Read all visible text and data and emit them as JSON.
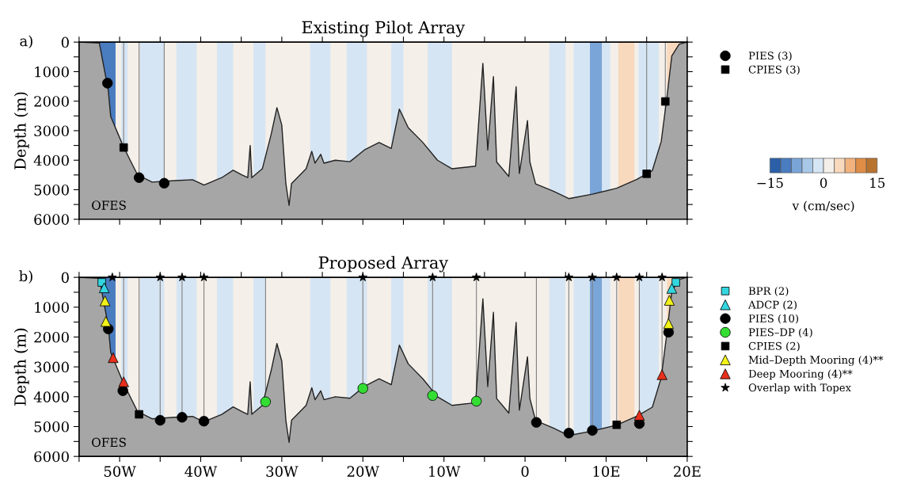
{
  "chart_data": [
    {
      "type": "line",
      "title": "Existing Pilot Array",
      "ylabel": "Depth (m)",
      "annotations": [
        "a)",
        "OFES",
        "−15",
        "0",
        "15",
        "v (cm/sec)"
      ],
      "xlim": [
        -55,
        20
      ],
      "xticks": [
        {
          "value": -55,
          "label": null
        },
        {
          "value": -50,
          "label": null
        },
        {
          "value": -45,
          "label": null
        },
        {
          "value": -40,
          "label": null
        },
        {
          "value": -35,
          "label": null
        },
        {
          "value": -30,
          "label": null
        },
        {
          "value": -25,
          "label": null
        },
        {
          "value": -20,
          "label": null
        },
        {
          "value": -15,
          "label": null
        },
        {
          "value": -10,
          "label": null
        },
        {
          "value": -5,
          "label": null
        },
        {
          "value": 0,
          "label": null
        },
        {
          "value": 5,
          "label": null
        },
        {
          "value": 10,
          "label": null
        },
        {
          "value": 15,
          "label": null
        },
        {
          "value": 20,
          "label": null
        }
      ],
      "ylim": [
        6000,
        0
      ],
      "yticks": [
        0,
        {
          "value": 500,
          "label": null
        },
        1000,
        {
          "value": 1500,
          "label": null
        },
        2000,
        {
          "value": 2500,
          "label": null
        },
        3000,
        {
          "value": 3500,
          "label": null
        },
        4000,
        {
          "value": 4500,
          "label": null
        },
        5000,
        {
          "value": 5500,
          "label": null
        },
        6000
      ],
      "tick_labels": "y",
      "legend": "right",
      "bands": [
        {
          "axis": "x",
          "from": -52.5,
          "to": -50.5,
          "color": "#4a7cc0"
        },
        {
          "axis": "x",
          "from": -49.8,
          "to": -49.0,
          "color": "#d6e5f3"
        },
        {
          "axis": "x",
          "from": -47.5,
          "to": -44.5,
          "color": "#d6e5f3"
        },
        {
          "axis": "x",
          "from": -43.0,
          "to": -40.5,
          "color": "#d6e5f3"
        },
        {
          "axis": "x",
          "from": -38.0,
          "to": -36.0,
          "color": "#d6e5f3"
        },
        {
          "axis": "x",
          "from": -33.5,
          "to": -32.0,
          "color": "#d6e5f3"
        },
        {
          "axis": "x",
          "from": -26.5,
          "to": -24.0,
          "color": "#d6e5f3"
        },
        {
          "axis": "x",
          "from": -22.0,
          "to": -19.5,
          "color": "#d6e5f3"
        },
        {
          "axis": "x",
          "from": -16.5,
          "to": -15.0,
          "color": "#d6e5f3"
        },
        {
          "axis": "x",
          "from": -12.0,
          "to": -9.0,
          "color": "#d6e5f3"
        },
        {
          "axis": "x",
          "from": 3.0,
          "to": 5.0,
          "color": "#d6e5f3"
        },
        {
          "axis": "x",
          "from": 6.0,
          "to": 8.0,
          "color": "#d6e5f3"
        },
        {
          "axis": "x",
          "from": 8.0,
          "to": 9.5,
          "color": "#7aa5d8"
        },
        {
          "axis": "x",
          "from": 9.5,
          "to": 10.5,
          "color": "#d6e5f3"
        },
        {
          "axis": "x",
          "from": 11.5,
          "to": 13.5,
          "color": "#f8d9bd"
        },
        {
          "axis": "x",
          "from": 14.0,
          "to": 16.5,
          "color": "#d6e5f3"
        },
        {
          "axis": "x",
          "from": 17.5,
          "to": 19.0,
          "color": "#f8d9bd"
        }
      ],
      "ref_lines": [
        {
          "axis": "x",
          "value": -49.5,
          "color": "#808080"
        },
        {
          "axis": "x",
          "value": -47.6,
          "color": "#808080"
        },
        {
          "axis": "x",
          "value": -44.5,
          "color": "#808080"
        },
        {
          "axis": "x",
          "value": 15.0,
          "color": "#808080"
        },
        {
          "axis": "x",
          "value": 17.3,
          "color": "#808080"
        }
      ],
      "series": [
        {
          "color": "#222222",
          "x": [
            -55,
            -52.5,
            -51.4,
            -51.1,
            -50.5,
            -49.6,
            -48.7,
            -47.8,
            -46.0,
            -43.2,
            -41.0,
            -39.6,
            -37.4,
            -36.0,
            -34.9,
            -34.2,
            -33.9,
            -33.7,
            -32.4,
            -31.3,
            -30.6,
            -30.0,
            -29.5,
            -29.1,
            -28.8,
            -27.0,
            -26.3,
            -25.9,
            -25.2,
            -24.8,
            -23.4,
            -21.6,
            -19.8,
            -18.0,
            -16.5,
            -15.5,
            -14.9,
            -14.4,
            -12.6,
            -10.8,
            -9.0,
            -6.1,
            -5.2,
            -4.6,
            -3.9,
            -3.5,
            -2.0,
            -1.1,
            -0.7,
            0.3,
            0.6,
            1.3,
            3.5,
            5.4,
            8.3,
            11.3,
            13.8,
            15.7,
            16.8,
            17.5,
            18.1,
            19.0,
            20
          ],
          "values": [
            0,
            30,
            1630,
            2520,
            2910,
            3500,
            4000,
            4490,
            4740,
            4690,
            4660,
            4840,
            4590,
            4340,
            4500,
            4590,
            3500,
            4590,
            4290,
            3110,
            2220,
            2810,
            4790,
            5530,
            4790,
            4290,
            3700,
            4100,
            3800,
            4100,
            4000,
            4050,
            3650,
            3400,
            3600,
            2270,
            2610,
            2900,
            3400,
            4000,
            4290,
            4200,
            720,
            3660,
            1170,
            4060,
            4550,
            1510,
            4450,
            2660,
            4060,
            4800,
            5050,
            5300,
            5150,
            4950,
            4650,
            4350,
            3360,
            1860,
            470,
            70,
            0
          ],
          "lower": [
            0,
            30,
            1630,
            2520,
            2910,
            3500,
            4000,
            4490,
            4740,
            4690,
            4660,
            4840,
            4590,
            4340,
            4500,
            4590,
            3500,
            4590,
            4290,
            3110,
            2220,
            2810,
            4790,
            5530,
            4790,
            4290,
            3700,
            4100,
            3800,
            4100,
            4000,
            4050,
            3650,
            3400,
            3600,
            2270,
            2610,
            2900,
            3400,
            4000,
            4290,
            4200,
            720,
            3660,
            1170,
            4060,
            4550,
            1510,
            4450,
            2660,
            4060,
            4800,
            5050,
            5300,
            5150,
            4950,
            4650,
            4350,
            3360,
            1860,
            470,
            70,
            0
          ],
          "upper": [
            6000,
            6000,
            6000,
            6000,
            6000,
            6000,
            6000,
            6000,
            6000,
            6000,
            6000,
            6000,
            6000,
            6000,
            6000,
            6000,
            6000,
            6000,
            6000,
            6000,
            6000,
            6000,
            6000,
            6000,
            6000,
            6000,
            6000,
            6000,
            6000,
            6000,
            6000,
            6000,
            6000,
            6000,
            6000,
            6000,
            6000,
            6000,
            6000,
            6000,
            6000,
            6000,
            6000,
            6000,
            6000,
            6000,
            6000,
            6000,
            6000,
            6000,
            6000,
            6000,
            6000,
            6000,
            6000,
            6000,
            6000,
            6000,
            6000,
            6000,
            6000,
            6000,
            6000
          ]
        },
        {
          "type": "scatter",
          "name": "PIES (3)",
          "color": "#000000",
          "marker": "circle",
          "x": [
            -51.5,
            -47.6,
            -44.5
          ],
          "values": [
            1390,
            4590,
            4780
          ]
        },
        {
          "type": "scatter",
          "name": "CPIES (3)",
          "color": "#000000",
          "marker": "square",
          "x": [
            -49.5,
            15.0,
            17.3
          ],
          "values": [
            3570,
            4460,
            2010
          ]
        }
      ]
    },
    {
      "type": "line",
      "title": "Proposed Array",
      "ylabel": "Depth (m)",
      "annotations": [
        "b)",
        "OFES"
      ],
      "xlim": [
        -55,
        20
      ],
      "xticks": [
        {
          "value": -55,
          "label": null
        },
        {
          "value": -50,
          "label": "50W"
        },
        {
          "value": -45,
          "label": null
        },
        {
          "value": -40,
          "label": "40W"
        },
        {
          "value": -35,
          "label": null
        },
        {
          "value": -30,
          "label": "30W"
        },
        {
          "value": -25,
          "label": null
        },
        {
          "value": -20,
          "label": "20W"
        },
        {
          "value": -15,
          "label": null
        },
        {
          "value": -10,
          "label": "10W"
        },
        {
          "value": -5,
          "label": null
        },
        {
          "value": 0,
          "label": "0"
        },
        {
          "value": 5,
          "label": null
        },
        {
          "value": 10,
          "label": "10E"
        },
        {
          "value": 15,
          "label": null
        },
        {
          "value": 20,
          "label": "20E"
        }
      ],
      "ylim": [
        6000,
        0
      ],
      "yticks": [
        0,
        {
          "value": 500,
          "label": null
        },
        1000,
        {
          "value": 1500,
          "label": null
        },
        2000,
        {
          "value": 2500,
          "label": null
        },
        3000,
        {
          "value": 3500,
          "label": null
        },
        4000,
        {
          "value": 4500,
          "label": null
        },
        5000,
        {
          "value": 5500,
          "label": null
        },
        6000
      ],
      "legend": "right",
      "bands": [
        {
          "axis": "x",
          "from": -52.5,
          "to": -50.5,
          "color": "#4a7cc0"
        },
        {
          "axis": "x",
          "from": -49.8,
          "to": -49.0,
          "color": "#d6e5f3"
        },
        {
          "axis": "x",
          "from": -47.5,
          "to": -44.5,
          "color": "#d6e5f3"
        },
        {
          "axis": "x",
          "from": -43.0,
          "to": -40.5,
          "color": "#d6e5f3"
        },
        {
          "axis": "x",
          "from": -38.0,
          "to": -36.0,
          "color": "#d6e5f3"
        },
        {
          "axis": "x",
          "from": -33.5,
          "to": -32.0,
          "color": "#d6e5f3"
        },
        {
          "axis": "x",
          "from": -26.5,
          "to": -24.0,
          "color": "#d6e5f3"
        },
        {
          "axis": "x",
          "from": -22.0,
          "to": -19.5,
          "color": "#d6e5f3"
        },
        {
          "axis": "x",
          "from": -16.5,
          "to": -15.0,
          "color": "#d6e5f3"
        },
        {
          "axis": "x",
          "from": -12.0,
          "to": -9.0,
          "color": "#d6e5f3"
        },
        {
          "axis": "x",
          "from": 3.0,
          "to": 5.0,
          "color": "#d6e5f3"
        },
        {
          "axis": "x",
          "from": 6.0,
          "to": 8.0,
          "color": "#d6e5f3"
        },
        {
          "axis": "x",
          "from": 8.0,
          "to": 9.5,
          "color": "#7aa5d8"
        },
        {
          "axis": "x",
          "from": 9.5,
          "to": 10.5,
          "color": "#d6e5f3"
        },
        {
          "axis": "x",
          "from": 11.5,
          "to": 13.5,
          "color": "#f8d9bd"
        },
        {
          "axis": "x",
          "from": 14.0,
          "to": 16.5,
          "color": "#d6e5f3"
        },
        {
          "axis": "x",
          "from": 17.5,
          "to": 19.0,
          "color": "#f8d9bd"
        }
      ],
      "ref_lines": [
        {
          "axis": "x",
          "value": -49.5,
          "color": "#808080"
        },
        {
          "axis": "x",
          "value": -47.6,
          "color": "#808080"
        },
        {
          "axis": "x",
          "value": -45.0,
          "color": "#808080"
        },
        {
          "axis": "x",
          "value": -42.3,
          "color": "#808080"
        },
        {
          "axis": "x",
          "value": -39.6,
          "color": "#808080"
        },
        {
          "axis": "x",
          "value": -32.0,
          "color": "#808080"
        },
        {
          "axis": "x",
          "value": -20.0,
          "color": "#808080"
        },
        {
          "axis": "x",
          "value": -11.4,
          "color": "#808080"
        },
        {
          "axis": "x",
          "value": -6.0,
          "color": "#808080"
        },
        {
          "axis": "x",
          "value": 1.4,
          "color": "#808080"
        },
        {
          "axis": "x",
          "value": 5.4,
          "color": "#808080"
        },
        {
          "axis": "x",
          "value": 8.3,
          "color": "#808080"
        },
        {
          "axis": "x",
          "value": 11.3,
          "color": "#808080"
        },
        {
          "axis": "x",
          "value": 14.1,
          "color": "#808080"
        },
        {
          "axis": "x",
          "value": 16.9,
          "color": "#808080"
        }
      ],
      "series": [
        {
          "color": "#222222",
          "x": [
            -55,
            -52.5,
            -51.4,
            -51.1,
            -50.5,
            -49.6,
            -48.7,
            -47.8,
            -46.0,
            -43.2,
            -41.0,
            -39.6,
            -37.4,
            -36.0,
            -34.9,
            -34.2,
            -33.9,
            -33.7,
            -32.4,
            -31.3,
            -30.6,
            -30.0,
            -29.5,
            -29.1,
            -28.8,
            -27.0,
            -26.3,
            -25.9,
            -25.2,
            -24.8,
            -23.4,
            -21.6,
            -19.8,
            -18.0,
            -16.5,
            -15.5,
            -14.9,
            -14.4,
            -12.6,
            -10.8,
            -9.0,
            -6.1,
            -5.2,
            -4.6,
            -3.9,
            -3.5,
            -2.0,
            -1.1,
            -0.7,
            0.3,
            0.6,
            1.3,
            3.5,
            5.4,
            8.3,
            11.3,
            13.8,
            15.7,
            16.8,
            17.5,
            18.1,
            19.0,
            20
          ],
          "values": [
            0,
            30,
            1630,
            2520,
            2910,
            3500,
            4000,
            4490,
            4740,
            4690,
            4660,
            4840,
            4590,
            4340,
            4500,
            4590,
            3500,
            4590,
            4290,
            3110,
            2220,
            2810,
            4790,
            5530,
            4790,
            4290,
            3700,
            4100,
            3800,
            4100,
            4000,
            4050,
            3650,
            3400,
            3600,
            2270,
            2610,
            2900,
            3400,
            4000,
            4290,
            4200,
            720,
            3660,
            1170,
            4060,
            4550,
            1510,
            4450,
            2660,
            4060,
            4800,
            5050,
            5300,
            5150,
            4950,
            4650,
            4350,
            3360,
            1860,
            470,
            70,
            0
          ],
          "lower": [
            0,
            30,
            1630,
            2520,
            2910,
            3500,
            4000,
            4490,
            4740,
            4690,
            4660,
            4840,
            4590,
            4340,
            4500,
            4590,
            3500,
            4590,
            4290,
            3110,
            2220,
            2810,
            4790,
            5530,
            4790,
            4290,
            3700,
            4100,
            3800,
            4100,
            4000,
            4050,
            3650,
            3400,
            3600,
            2270,
            2610,
            2900,
            3400,
            4000,
            4290,
            4200,
            720,
            3660,
            1170,
            4060,
            4550,
            1510,
            4450,
            2660,
            4060,
            4800,
            5050,
            5300,
            5150,
            4950,
            4650,
            4350,
            3360,
            1860,
            470,
            70,
            0
          ],
          "upper": [
            6000,
            6000,
            6000,
            6000,
            6000,
            6000,
            6000,
            6000,
            6000,
            6000,
            6000,
            6000,
            6000,
            6000,
            6000,
            6000,
            6000,
            6000,
            6000,
            6000,
            6000,
            6000,
            6000,
            6000,
            6000,
            6000,
            6000,
            6000,
            6000,
            6000,
            6000,
            6000,
            6000,
            6000,
            6000,
            6000,
            6000,
            6000,
            6000,
            6000,
            6000,
            6000,
            6000,
            6000,
            6000,
            6000,
            6000,
            6000,
            6000,
            6000,
            6000,
            6000,
            6000,
            6000,
            6000,
            6000,
            6000,
            6000,
            6000,
            6000,
            6000,
            6000,
            6000
          ]
        },
        {
          "type": "scatter",
          "name": "BPR (2)",
          "color": "#33d6e0",
          "marker": "square",
          "x": [
            -52.2,
            18.6
          ],
          "values": [
            170,
            170
          ]
        },
        {
          "type": "scatter",
          "name": "ADCP (2)",
          "color": "#33d6e0",
          "marker": "triangle",
          "x": [
            -51.9,
            18.1
          ],
          "values": [
            350,
            370
          ]
        },
        {
          "type": "scatter",
          "name": "PIES (10)",
          "color": "#000000",
          "marker": "circle",
          "x": [
            -51.4,
            -49.6,
            -45.0,
            -42.3,
            -39.6,
            1.4,
            5.4,
            8.3,
            14.1,
            17.7
          ],
          "values": [
            1730,
            3800,
            4790,
            4690,
            4820,
            4860,
            5220,
            5130,
            4900,
            1840
          ]
        },
        {
          "type": "scatter",
          "name": "PIES–DP (4)",
          "color": "#33dd33",
          "marker": "circle",
          "x": [
            -32.0,
            -20.0,
            -11.4,
            -6.0
          ],
          "values": [
            4170,
            3720,
            3960,
            4150
          ]
        },
        {
          "type": "scatter",
          "name": "CPIES (2)",
          "color": "#000000",
          "marker": "square",
          "x": [
            -47.6,
            11.3
          ],
          "values": [
            4590,
            4940
          ]
        },
        {
          "type": "scatter",
          "name": "Mid–Depth Mooring (4)**",
          "color": "#f2f21a",
          "marker": "triangle",
          "x": [
            -51.8,
            -51.7,
            17.8,
            17.7
          ],
          "values": [
            790,
            1480,
            770,
            1550
          ]
        },
        {
          "type": "scatter",
          "name": "Deep Mooring (4)**",
          "color": "#e8301c",
          "marker": "triangle",
          "x": [
            -50.8,
            -49.5,
            16.9,
            14.1
          ],
          "values": [
            2690,
            3500,
            3260,
            4620
          ]
        },
        {
          "type": "scatter",
          "name": "Overlap with Topex",
          "color": "#000000",
          "marker": "star",
          "x": [
            -50.9,
            -45.0,
            -42.3,
            -39.6,
            -20.0,
            -11.4,
            -6.0,
            5.4,
            8.3,
            11.3,
            14.1,
            16.9
          ],
          "values": [
            0,
            0,
            0,
            0,
            0,
            0,
            0,
            0,
            0,
            0,
            0,
            0
          ]
        }
      ]
    }
  ]
}
